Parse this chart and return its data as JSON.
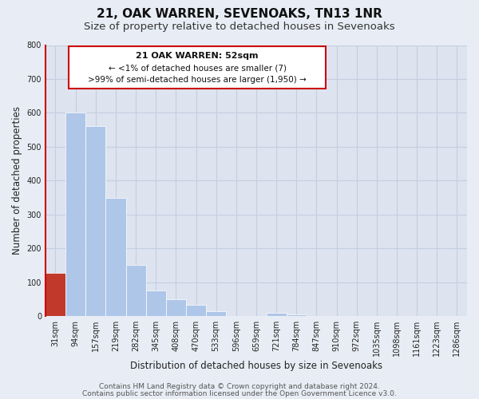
{
  "title": "21, OAK WARREN, SEVENOAKS, TN13 1NR",
  "subtitle": "Size of property relative to detached houses in Sevenoaks",
  "xlabel": "Distribution of detached houses by size in Sevenoaks",
  "ylabel": "Number of detached properties",
  "bar_labels": [
    "31sqm",
    "94sqm",
    "157sqm",
    "219sqm",
    "282sqm",
    "345sqm",
    "408sqm",
    "470sqm",
    "533sqm",
    "596sqm",
    "659sqm",
    "721sqm",
    "784sqm",
    "847sqm",
    "910sqm",
    "972sqm",
    "1035sqm",
    "1098sqm",
    "1161sqm",
    "1223sqm",
    "1286sqm"
  ],
  "bar_heights": [
    128,
    601,
    560,
    349,
    152,
    75,
    50,
    33,
    15,
    0,
    0,
    10,
    5,
    0,
    0,
    0,
    0,
    0,
    0,
    0,
    0
  ],
  "bar_colors": [
    "#c0392b",
    "#aec6e8",
    "#aec6e8",
    "#aec6e8",
    "#aec6e8",
    "#aec6e8",
    "#aec6e8",
    "#aec6e8",
    "#aec6e8",
    "#aec6e8",
    "#aec6e8",
    "#aec6e8",
    "#aec6e8",
    "#aec6e8",
    "#aec6e8",
    "#aec6e8",
    "#aec6e8",
    "#aec6e8",
    "#aec6e8",
    "#aec6e8",
    "#aec6e8"
  ],
  "ylim": [
    0,
    800
  ],
  "yticks": [
    0,
    100,
    200,
    300,
    400,
    500,
    600,
    700,
    800
  ],
  "annotation_title": "21 OAK WARREN: 52sqm",
  "annotation_line1": "← <1% of detached houses are smaller (7)",
  "annotation_line2": ">99% of semi-detached houses are larger (1,950) →",
  "footer1": "Contains HM Land Registry data © Crown copyright and database right 2024.",
  "footer2": "Contains public sector information licensed under the Open Government Licence v3.0.",
  "bg_color": "#e8edf5",
  "plot_bg_color": "#dde4f0",
  "grid_color": "#c5cedf",
  "title_fontsize": 11,
  "subtitle_fontsize": 9.5,
  "label_fontsize": 8.5,
  "tick_fontsize": 7,
  "footer_fontsize": 6.5
}
